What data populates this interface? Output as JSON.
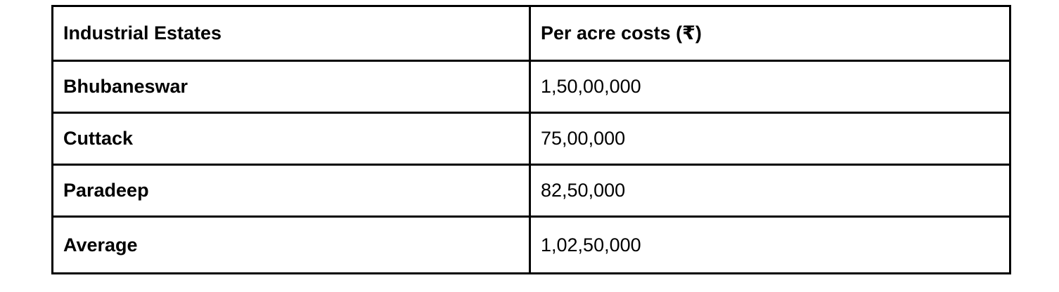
{
  "table": {
    "headers": [
      "Industrial Estates",
      "Per acre costs (₹)"
    ],
    "rows": [
      {
        "estate": "Bhubaneswar",
        "cost": "1,50,00,000"
      },
      {
        "estate": "Cuttack",
        "cost": "75,00,000"
      },
      {
        "estate": "Paradeep",
        "cost": "82,50,000"
      },
      {
        "estate": "Average",
        "cost": "1,02,50,000"
      }
    ]
  }
}
